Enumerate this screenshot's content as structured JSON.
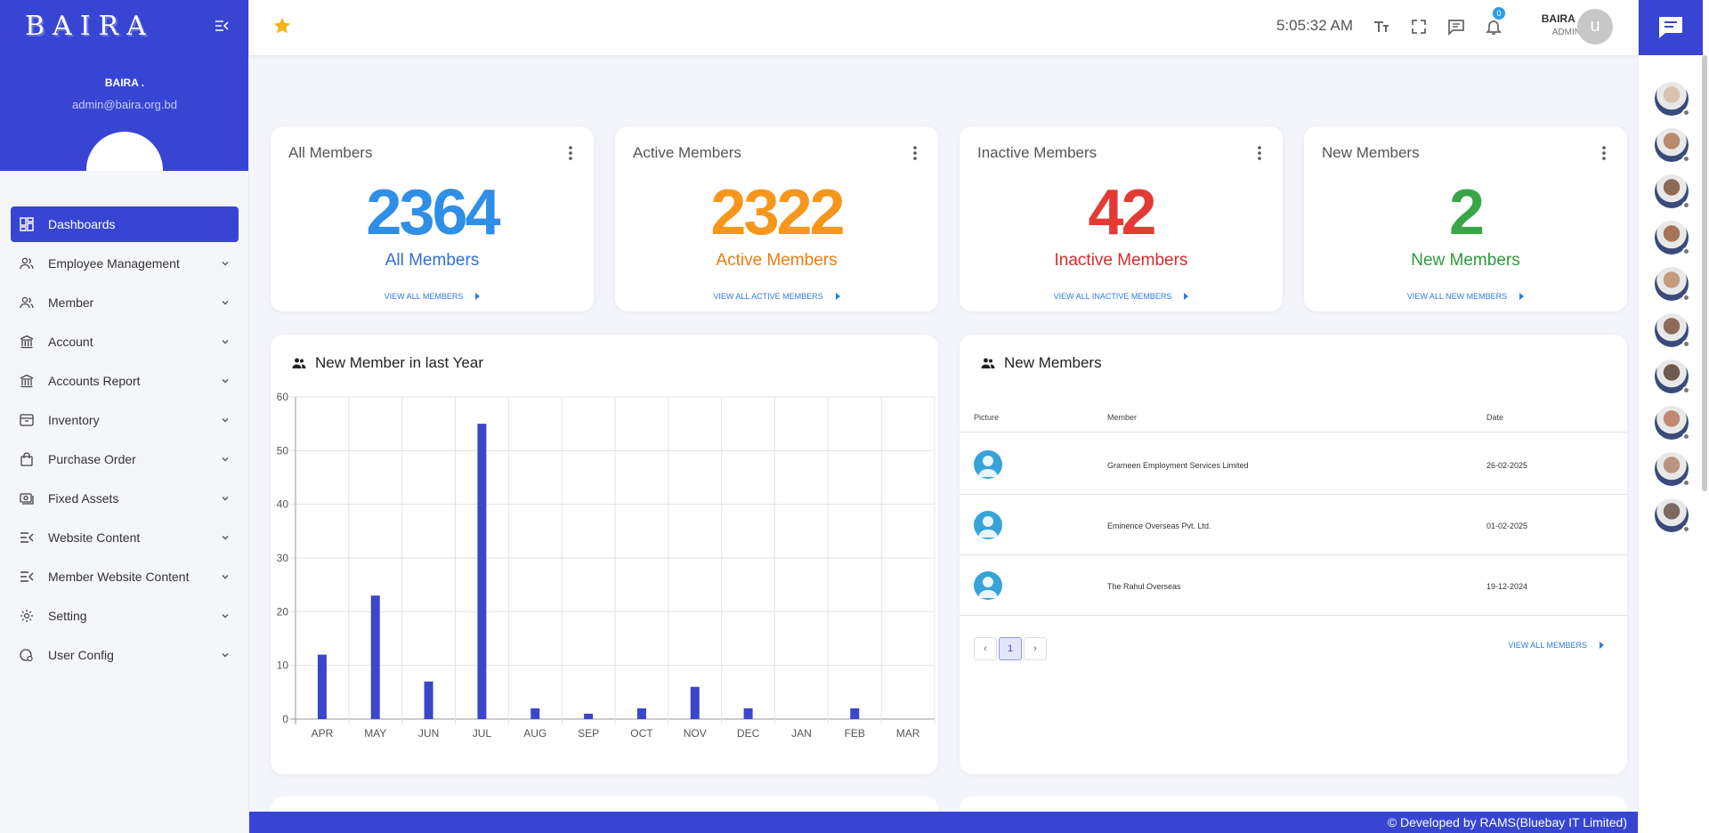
{
  "brand": {
    "logo_text": "BAIRA"
  },
  "sidebar": {
    "user_name": "BAIRA .",
    "user_email": "admin@baira.org.bd",
    "items": [
      {
        "label": "Dashboards",
        "icon": "dashboard-icon",
        "active": true
      },
      {
        "label": "Employee Management",
        "icon": "people-icon"
      },
      {
        "label": "Member",
        "icon": "people-icon"
      },
      {
        "label": "Account",
        "icon": "bank-icon"
      },
      {
        "label": "Accounts Report",
        "icon": "bank-icon"
      },
      {
        "label": "Inventory",
        "icon": "inventory-icon"
      },
      {
        "label": "Purchase Order",
        "icon": "bag-icon"
      },
      {
        "label": "Fixed Assets",
        "icon": "cash-icon"
      },
      {
        "label": "Website Content",
        "icon": "menu-collapse-icon"
      },
      {
        "label": "Member Website Content",
        "icon": "menu-collapse-icon"
      },
      {
        "label": "Setting",
        "icon": "gear-icon"
      },
      {
        "label": "User Config",
        "icon": "user-config-icon"
      }
    ]
  },
  "topbar": {
    "time": "5:05:32 AM",
    "notification_count": "0",
    "user_name": "BAIRA .",
    "user_role": "ADMIN",
    "avatar_letter": "u"
  },
  "stats": [
    {
      "title": "All Members",
      "value": "2364",
      "sub": "All Members",
      "link": "VIEW ALL MEMBERS",
      "color": "#2f8ee5"
    },
    {
      "title": "Active Members",
      "value": "2322",
      "sub": "Active Members",
      "link": "VIEW ALL ACTIVE MEMBERS",
      "color": "#f7961d"
    },
    {
      "title": "Inactive Members",
      "value": "42",
      "sub": "Inactive Members",
      "link": "VIEW ALL INACTIVE MEMBERS",
      "color": "#e53935"
    },
    {
      "title": "New Members",
      "value": "2",
      "sub": "New Members",
      "link": "VIEW ALL NEW MEMBERS",
      "color": "#3aa548"
    }
  ],
  "chart_panel": {
    "title": "New Member in last Year"
  },
  "chart_data": {
    "type": "bar",
    "categories": [
      "APR",
      "MAY",
      "JUN",
      "JUL",
      "AUG",
      "SEP",
      "OCT",
      "NOV",
      "DEC",
      "JAN",
      "FEB",
      "MAR"
    ],
    "values": [
      12,
      23,
      7,
      55,
      2,
      1,
      2,
      6,
      2,
      0,
      2,
      0
    ],
    "yticks": [
      0,
      10,
      20,
      30,
      40,
      50,
      60
    ],
    "ylim": [
      0,
      60
    ],
    "grid": true,
    "bar_color": "#3a47c9"
  },
  "new_members": {
    "title": "New Members",
    "columns": {
      "picture": "Picture",
      "member": "Member",
      "date": "Date"
    },
    "rows": [
      {
        "member": "Grameen Employment Services Limited",
        "date": "26-02-2025"
      },
      {
        "member": "Eminence Overseas Pvt. Ltd.",
        "date": "01-02-2025"
      },
      {
        "member": "The Rahul Overseas",
        "date": "19-12-2024"
      }
    ],
    "page": "1",
    "view_all": "VIEW ALL MEMBERS"
  },
  "footer": {
    "copyright_symbol": "©",
    "text": "Developed by  RAMS(Bluebay IT Limited)"
  },
  "contacts_count": 10
}
